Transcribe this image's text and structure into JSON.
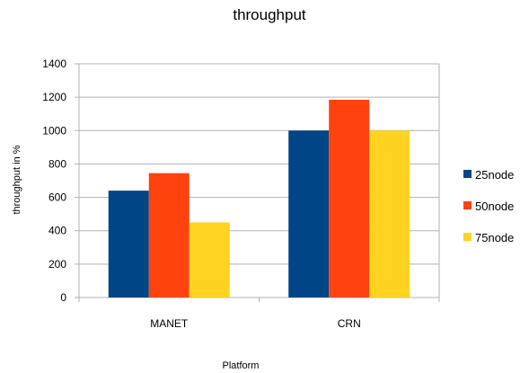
{
  "chart_data": {
    "type": "bar",
    "title": "throughput",
    "xlabel": "Platform",
    "ylabel": "throughput in %",
    "categories": [
      "MANET",
      "CRN"
    ],
    "series": [
      {
        "name": "25node",
        "color": "#004586",
        "values": [
          640,
          1000
        ]
      },
      {
        "name": "50node",
        "color": "#FF420E",
        "values": [
          745,
          1185
        ]
      },
      {
        "name": "75node",
        "color": "#FFD320",
        "values": [
          450,
          1000
        ]
      }
    ],
    "ylim": [
      0,
      1400
    ],
    "yticks": [
      "0",
      "200",
      "400",
      "600",
      "800",
      "1000",
      "1200",
      "1400"
    ],
    "grid": true,
    "legend_position": "right"
  }
}
